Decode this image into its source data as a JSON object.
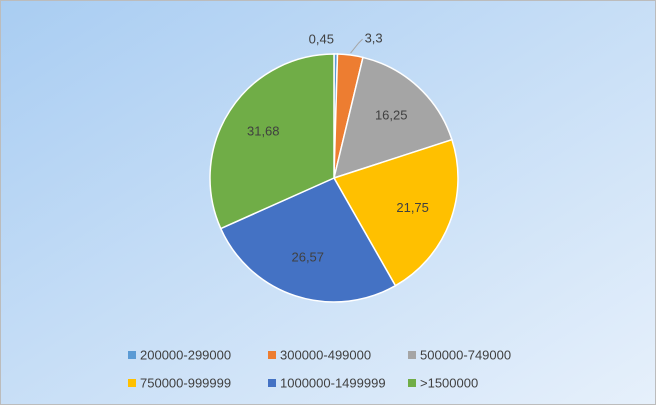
{
  "chart_data": {
    "type": "pie",
    "categories": [
      "200000-299000",
      "300000-499000",
      "500000-749000",
      "750000-999999",
      "1000000-1499999",
      ">1500000"
    ],
    "values": [
      0.45,
      3.3,
      16.25,
      21.75,
      26.57,
      31.68
    ],
    "value_labels": [
      "0,45",
      "3,3",
      "16,25",
      "21,75",
      "26,57",
      "31,68"
    ],
    "colors": [
      "#5b9bd5",
      "#ed7d31",
      "#a5a5a5",
      "#ffc000",
      "#4472c4",
      "#70ad47"
    ],
    "legend": "bottom"
  }
}
